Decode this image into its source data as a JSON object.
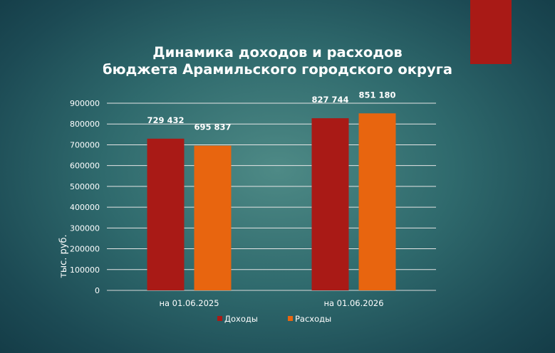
{
  "chart_data": {
    "type": "bar",
    "title_line1": "Динамика доходов и расходов",
    "title_line2": "бюджета Арамильского городского округа",
    "ylabel": "тыс. руб.",
    "xlabel": "",
    "ylim": [
      0,
      900000
    ],
    "ytick_step": 100000,
    "categories": [
      "на 01.06.2025",
      "на 01.06.2026"
    ],
    "series": [
      {
        "name": "Доходы",
        "color": "#a91a16",
        "values": [
          729432,
          827744
        ],
        "labels": [
          "729 432",
          "827 744"
        ]
      },
      {
        "name": "Расходы",
        "color": "#e8650f",
        "values": [
          695837,
          851180
        ],
        "labels": [
          "695 837",
          "851 180"
        ]
      }
    ],
    "grid": true,
    "legend_position": "bottom"
  }
}
